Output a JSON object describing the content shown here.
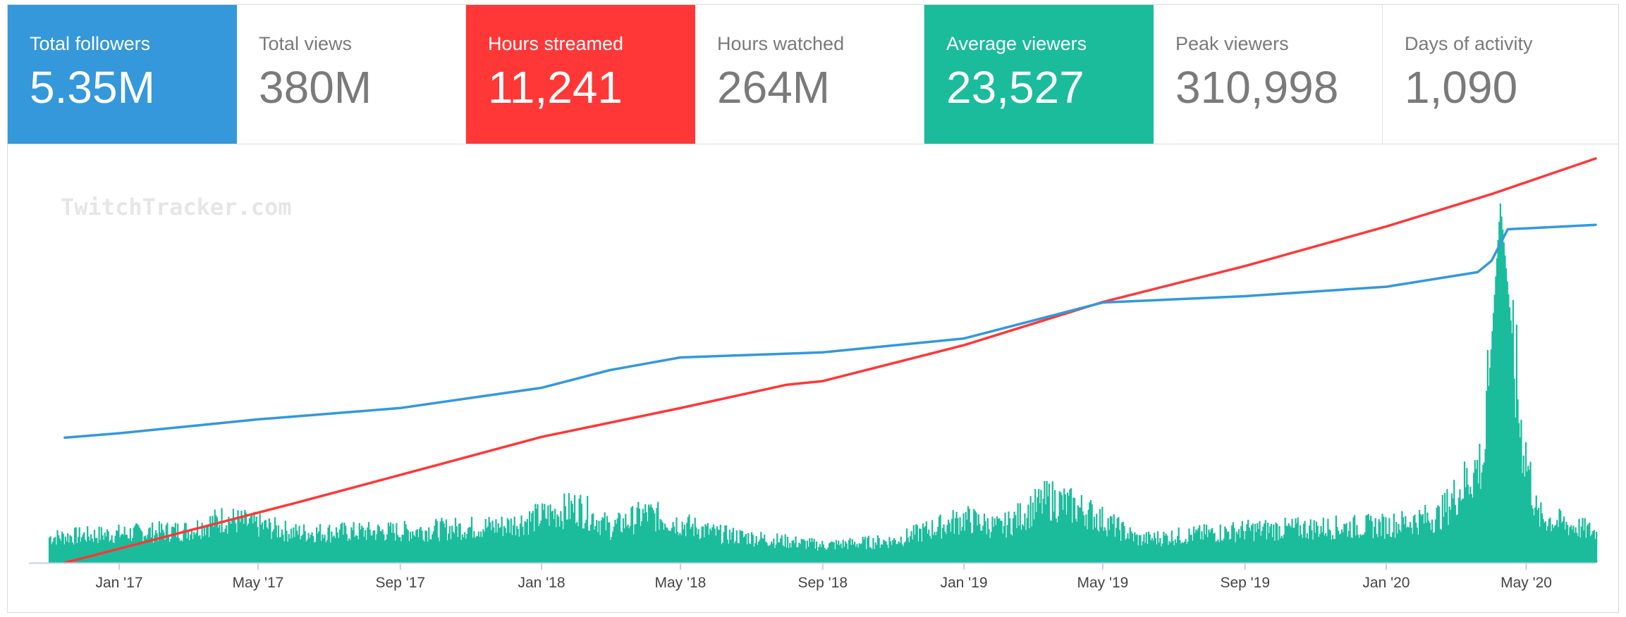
{
  "stats": [
    {
      "label": "Total followers",
      "value": "5.35M",
      "theme": "blue"
    },
    {
      "label": "Total views",
      "value": "380M",
      "theme": "plain"
    },
    {
      "label": "Hours streamed",
      "value": "11,241",
      "theme": "red"
    },
    {
      "label": "Hours watched",
      "value": "264M",
      "theme": "plain"
    },
    {
      "label": "Average viewers",
      "value": "23,527",
      "theme": "green"
    },
    {
      "label": "Peak viewers",
      "value": "310,998",
      "theme": "plain"
    },
    {
      "label": "Days of activity",
      "value": "1,090",
      "theme": "plain"
    }
  ],
  "watermark": "TwitchTracker.com",
  "colors": {
    "blue": "#3498db",
    "red": "#ff3737",
    "green": "#1abc9c",
    "axis": "#c8d0e0",
    "tick_text": "#444444"
  },
  "chart_data": {
    "type": "line",
    "title": "",
    "xlabel": "",
    "ylabel": "",
    "x_range": [
      "2016-10-15",
      "2020-06-30"
    ],
    "x_ticks": [
      {
        "date": "2017-01-01",
        "label": "Jan '17"
      },
      {
        "date": "2017-05-01",
        "label": "May '17"
      },
      {
        "date": "2017-09-01",
        "label": "Sep '17"
      },
      {
        "date": "2018-01-01",
        "label": "Jan '18"
      },
      {
        "date": "2018-05-01",
        "label": "May '18"
      },
      {
        "date": "2018-09-01",
        "label": "Sep '18"
      },
      {
        "date": "2019-01-01",
        "label": "Jan '19"
      },
      {
        "date": "2019-05-01",
        "label": "May '19"
      },
      {
        "date": "2019-09-01",
        "label": "Sep '19"
      },
      {
        "date": "2020-01-01",
        "label": "Jan '20"
      },
      {
        "date": "2020-05-01",
        "label": "May '20"
      }
    ],
    "series": [
      {
        "name": "Hours streamed (cumulative)",
        "color": "#ff3737",
        "y_max": 11241,
        "points": [
          [
            "2016-11-15",
            0
          ],
          [
            "2017-02-01",
            650
          ],
          [
            "2017-06-01",
            1650
          ],
          [
            "2017-10-01",
            2700
          ],
          [
            "2018-01-01",
            3500
          ],
          [
            "2018-05-01",
            4300
          ],
          [
            "2018-08-01",
            4950
          ],
          [
            "2018-09-01",
            5050
          ],
          [
            "2019-01-01",
            6050
          ],
          [
            "2019-05-01",
            7250
          ],
          [
            "2019-09-01",
            8250
          ],
          [
            "2020-01-01",
            9350
          ],
          [
            "2020-04-01",
            10250
          ],
          [
            "2020-06-30",
            11241
          ]
        ]
      },
      {
        "name": "Total followers",
        "color": "#3498db",
        "y_max": 6.4,
        "points": [
          [
            "2016-11-15",
            1.98
          ],
          [
            "2017-01-01",
            2.05
          ],
          [
            "2017-05-01",
            2.27
          ],
          [
            "2017-09-01",
            2.45
          ],
          [
            "2018-01-01",
            2.77
          ],
          [
            "2018-03-01",
            3.05
          ],
          [
            "2018-05-01",
            3.25
          ],
          [
            "2018-09-01",
            3.33
          ],
          [
            "2019-01-01",
            3.55
          ],
          [
            "2019-05-01",
            4.12
          ],
          [
            "2019-09-01",
            4.22
          ],
          [
            "2020-01-01",
            4.37
          ],
          [
            "2020-03-20",
            4.6
          ],
          [
            "2020-04-01",
            4.78
          ],
          [
            "2020-04-15",
            5.28
          ],
          [
            "2020-06-30",
            5.35
          ]
        ]
      }
    ],
    "bars": {
      "name": "Average viewers per stream",
      "color": "#1abc9c",
      "y_max": 350000,
      "note": "Daily bars; baseline ~20-40K with a peak near 311K in April 2020",
      "segments": [
        [
          "2016-11-01",
          22000
        ],
        [
          "2017-03-01",
          28000
        ],
        [
          "2017-04-01",
          38000
        ],
        [
          "2017-06-01",
          26000
        ],
        [
          "2017-09-01",
          27000
        ],
        [
          "2017-12-01",
          32000
        ],
        [
          "2018-02-01",
          48000
        ],
        [
          "2018-03-01",
          30000
        ],
        [
          "2018-04-01",
          42000
        ],
        [
          "2018-06-01",
          25000
        ],
        [
          "2018-09-01",
          15000
        ],
        [
          "2018-11-01",
          19000
        ],
        [
          "2019-01-01",
          38000
        ],
        [
          "2019-02-01",
          30000
        ],
        [
          "2019-03-15",
          55000
        ],
        [
          "2019-04-15",
          45000
        ],
        [
          "2019-06-01",
          20000
        ],
        [
          "2019-09-01",
          28000
        ],
        [
          "2020-01-01",
          32000
        ],
        [
          "2020-02-15",
          40000
        ],
        [
          "2020-03-25",
          90000
        ],
        [
          "2020-04-08",
          311000
        ],
        [
          "2020-04-25",
          120000
        ],
        [
          "2020-05-10",
          40000
        ],
        [
          "2020-06-30",
          26000
        ]
      ]
    }
  }
}
